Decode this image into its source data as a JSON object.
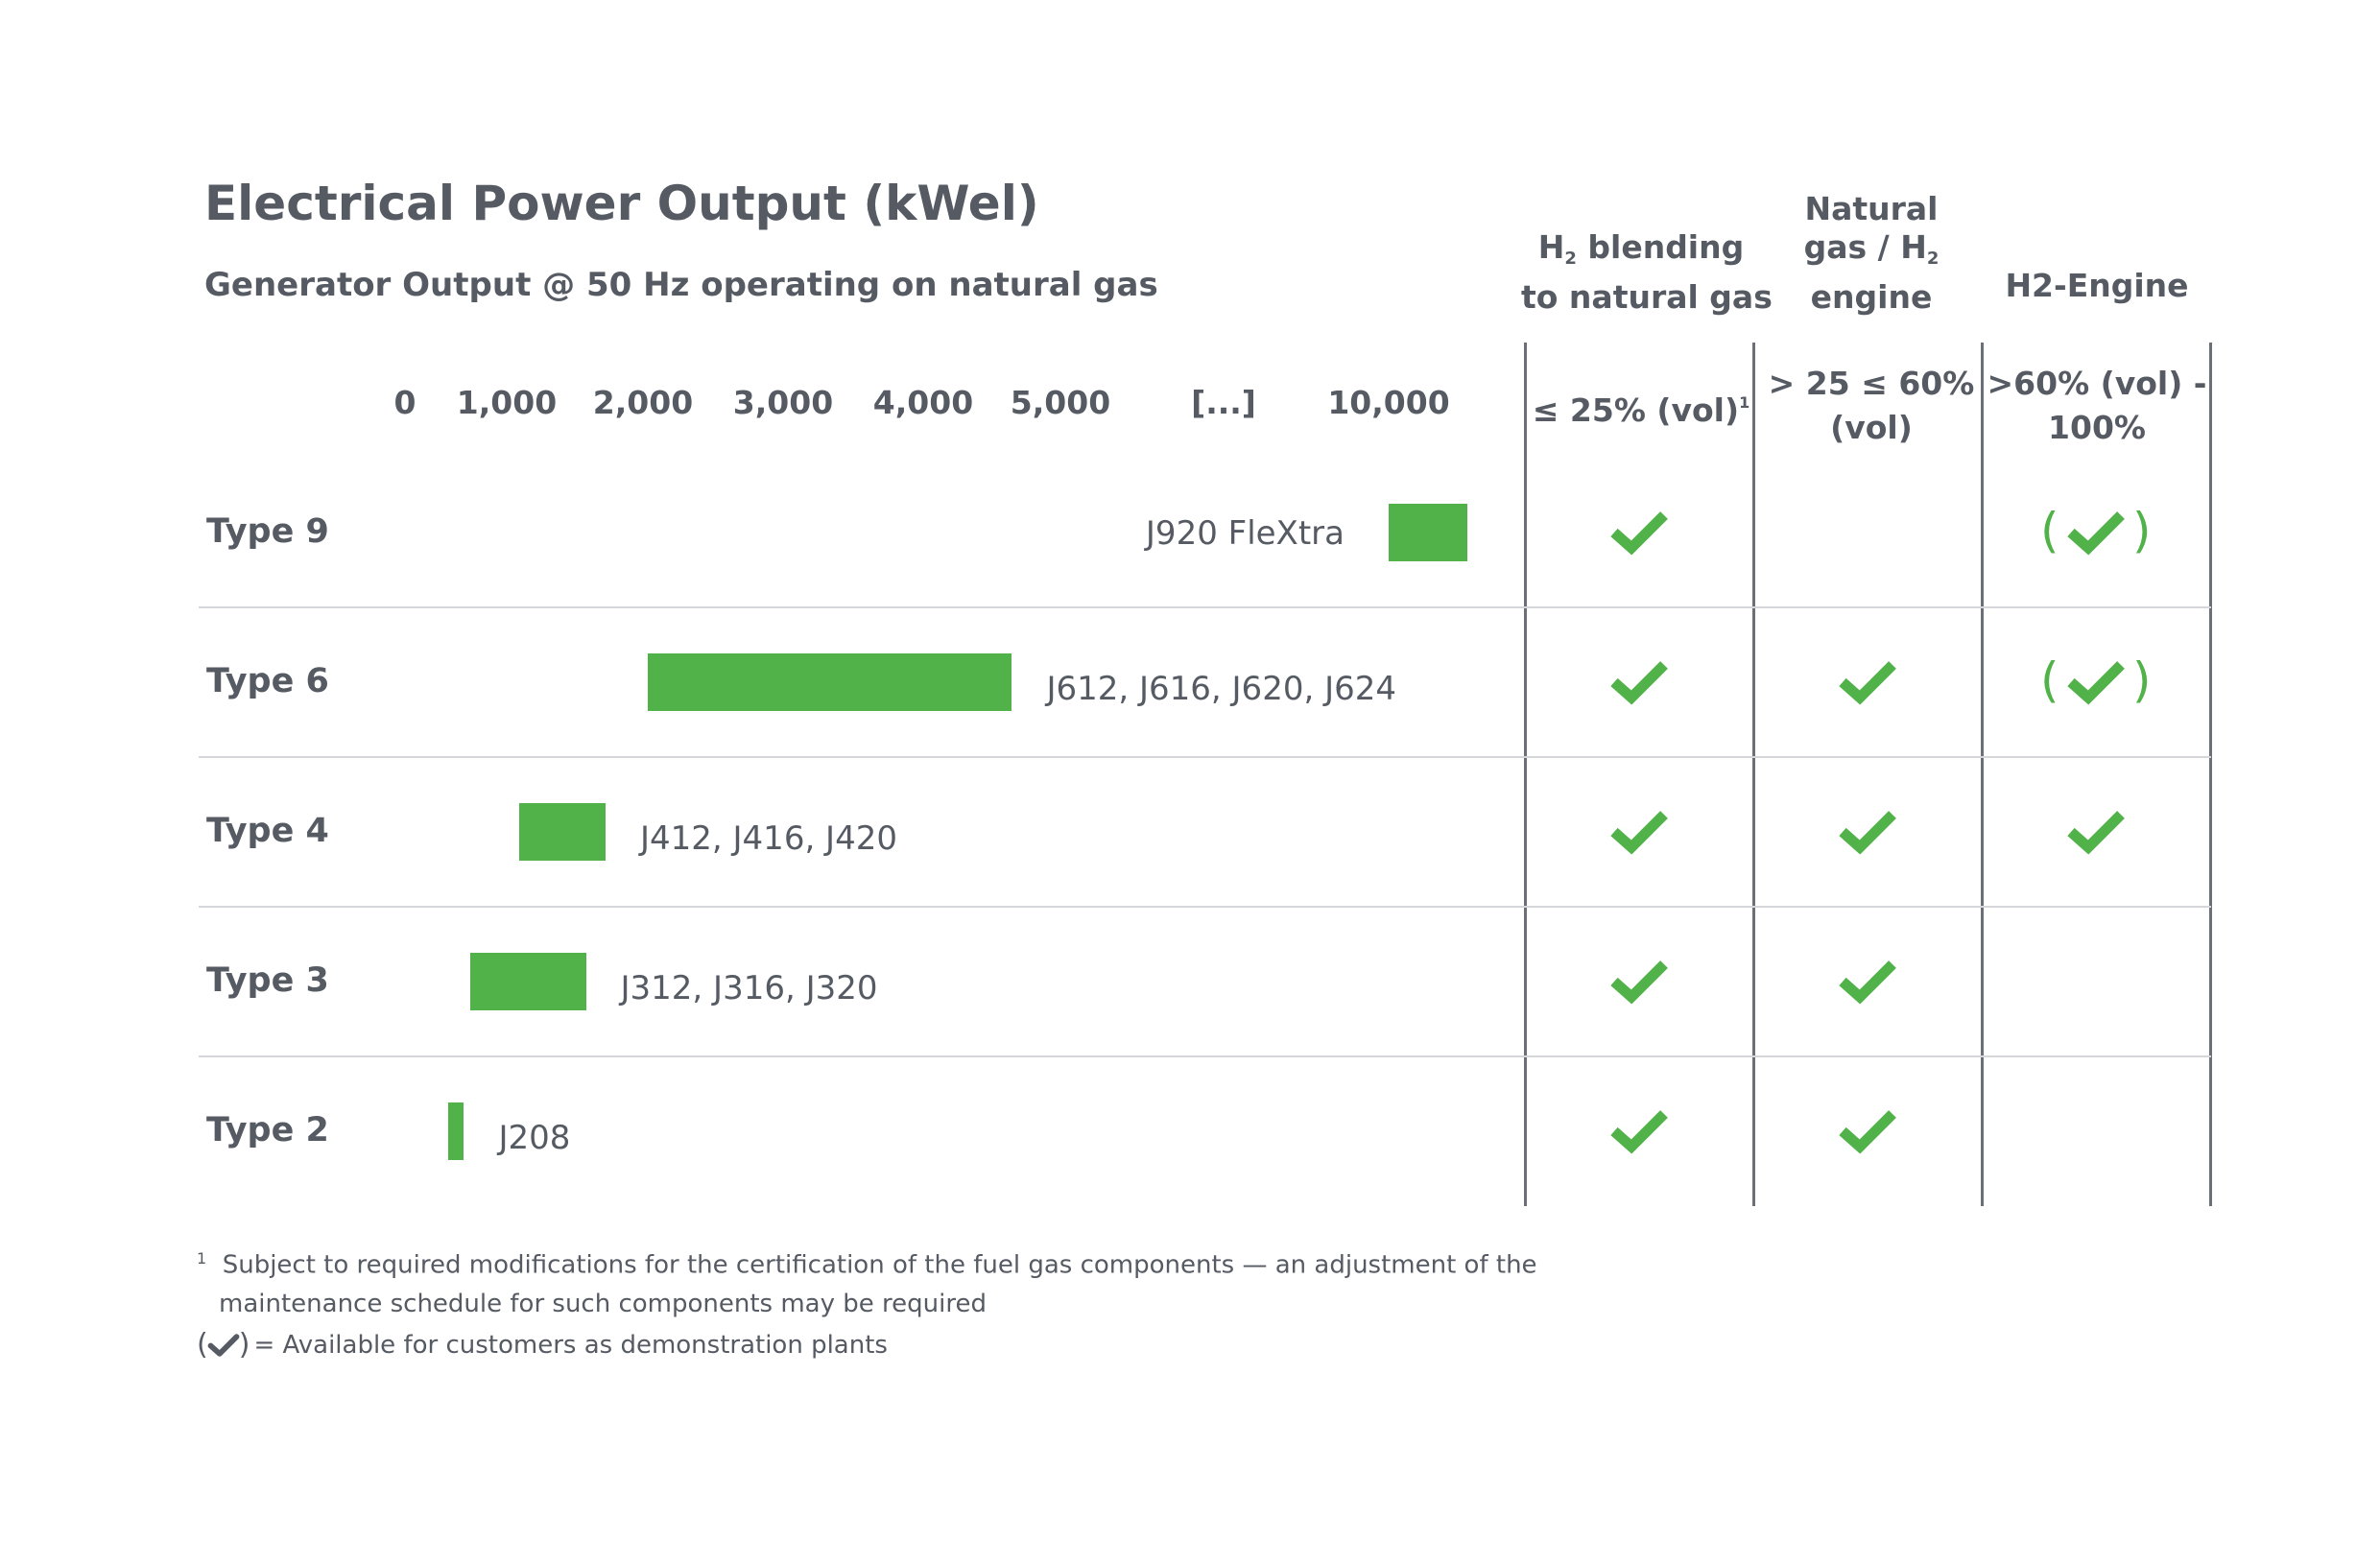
{
  "title": "Electrical Power Output (kWel)",
  "subtitle": "Generator Output @ 50 Hz operating on natural gas",
  "columns": [
    {
      "line1": "H",
      "sub": "2",
      "line1b": " blending",
      "line2": "to natural gas",
      "range": "≤ 25% (vol)",
      "range_sup": "1"
    },
    {
      "line1": "Natural",
      "line2a": "gas / H",
      "sub": "2",
      "line3": "engine",
      "range": "> 25 ≤ 60%",
      "range2": "(vol)"
    },
    {
      "line1": "H2-Engine",
      "range": ">60% (vol) -",
      "range2": "100%"
    }
  ],
  "chart_data": {
    "type": "bar",
    "orientation": "horizontal-range",
    "title": "Electrical Power Output (kWel)",
    "subtitle": "Generator Output @ 50 Hz operating on natural gas",
    "x_tick_labels": [
      "0",
      "1,000",
      "2,000",
      "3,000",
      "4,000",
      "5,000",
      "[...]",
      "10,000"
    ],
    "axis_break": "[...]",
    "categories": [
      "Type 9",
      "Type 6",
      "Type 4",
      "Type 3",
      "Type 2"
    ],
    "bars": [
      {
        "category": "Type 9",
        "start": 10000,
        "end": 10600,
        "label": "J920 FleXtra",
        "label_side": "left"
      },
      {
        "category": "Type 6",
        "start": 1850,
        "end": 4630,
        "label": "J612, J616, J620, J624",
        "label_side": "right"
      },
      {
        "category": "Type 4",
        "start": 870,
        "end": 1530,
        "label": "J412, J416, J420",
        "label_side": "right"
      },
      {
        "category": "Type 3",
        "start": 500,
        "end": 1380,
        "label": "J312, J316, J320",
        "label_side": "right"
      },
      {
        "category": "Type 2",
        "start": 330,
        "end": 450,
        "label": "J208",
        "label_side": "right"
      }
    ],
    "capability_matrix": {
      "Type 9": [
        "check",
        "",
        "demo"
      ],
      "Type 6": [
        "check",
        "check",
        "demo"
      ],
      "Type 4": [
        "check",
        "check",
        "check"
      ],
      "Type 3": [
        "check",
        "check",
        ""
      ],
      "Type 2": [
        "check",
        "check",
        ""
      ]
    },
    "bar_color": "#50b248",
    "grid": false
  },
  "footnotes": {
    "note1_marker": "1",
    "note1_line1": "Subject to required modifications for the certification of the fuel gas components — an adjustment of the",
    "note1_line2": "maintenance schedule for such components may be required",
    "legend_text": "= Available for customers as demonstration plants"
  },
  "colors": {
    "accent": "#50b248",
    "text": "#555a63",
    "rule": "#d4d6d9",
    "column_rule": "#6b7078"
  }
}
